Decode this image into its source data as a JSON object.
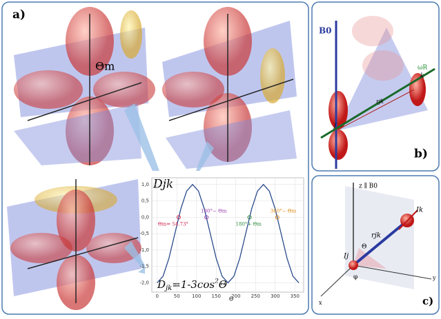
{
  "panels": {
    "a": "a)",
    "b": "b)",
    "c": "c)"
  },
  "panel_a": {
    "angle_label": "Θm"
  },
  "panel_b": {
    "field": "B0",
    "rotation": "ωR",
    "vector": "rjk",
    "spin_j": "j",
    "spin_k": "k"
  },
  "panel_c": {
    "z_axis": "z ∥ B0",
    "spin_k": "Ik",
    "vector": "rjk",
    "spin_j": "Ij",
    "theta": "Θ",
    "phi": "φ",
    "x_axis": "x",
    "y_axis": "y"
  },
  "chart_data": {
    "type": "line",
    "y_label": "Djk",
    "x_label": "Θ",
    "formula": {
      "base": "D",
      "sub": "jk",
      "mid": "=1-3cos",
      "sup": "2",
      "end": "Θ"
    },
    "x": [
      0,
      15,
      30,
      45,
      60,
      75,
      90,
      105,
      120,
      135,
      150,
      165,
      180,
      195,
      210,
      225,
      240,
      255,
      270,
      285,
      300,
      315,
      330,
      345,
      360
    ],
    "values": [
      -2,
      -1.799,
      -1.25,
      -0.5,
      0.25,
      0.799,
      1,
      0.799,
      0.25,
      -0.5,
      -1.25,
      -1.799,
      -2,
      -1.799,
      -1.25,
      -0.5,
      0.25,
      0.799,
      1,
      0.799,
      0.25,
      -0.5,
      -1.25,
      -1.799,
      -2
    ],
    "color": "#2a4a8c",
    "xlim": [
      -10,
      360
    ],
    "xticks": [
      0,
      50,
      100,
      150,
      200,
      250,
      300,
      350
    ],
    "ylim": [
      -2.2,
      1.1
    ],
    "yticks": [
      {
        "value": 1,
        "label": "1,0"
      },
      {
        "value": 0.5,
        "label": "0,5"
      },
      {
        "value": 0,
        "label": "0,0"
      },
      {
        "value": -0.5,
        "label": "-0,5"
      },
      {
        "value": -1,
        "label": "-1,0"
      },
      {
        "value": -1.5,
        "label": "-1,5"
      },
      {
        "value": -2,
        "label": "-2,0"
      }
    ],
    "markers": [
      {
        "x": 54.73,
        "y": 0,
        "label": "Θm= 54.73°",
        "color": "#d0204a"
      },
      {
        "x": 125.27,
        "y": 0,
        "label": "180°− Θm",
        "color": "#9a3fb0"
      },
      {
        "x": 234.73,
        "y": 0,
        "label": "180°+ Θm",
        "color": "#2a8a3a"
      },
      {
        "x": 305.27,
        "y": 0,
        "label": "360°− Θm",
        "color": "#e08a10"
      }
    ]
  }
}
